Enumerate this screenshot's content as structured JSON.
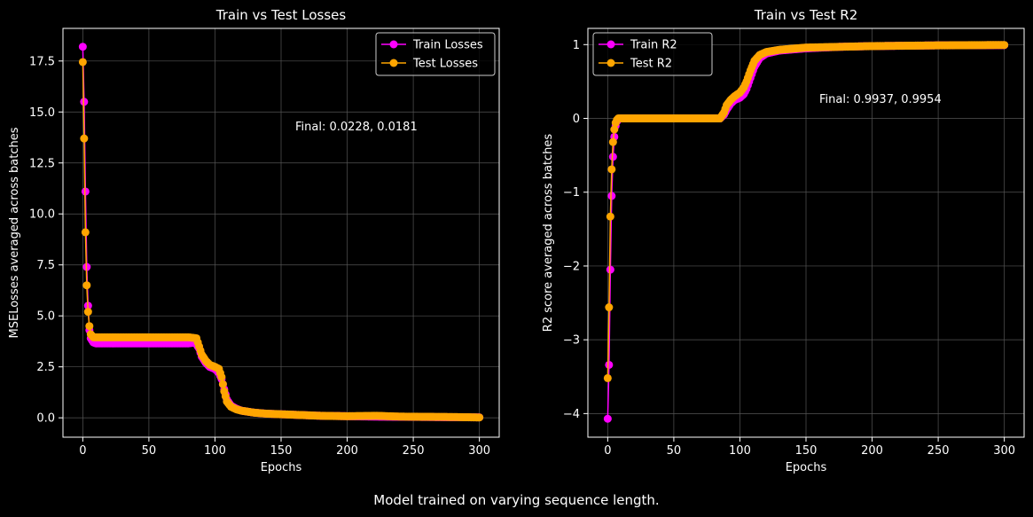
{
  "suptitle": "Model trained on varying sequence length.",
  "colors": {
    "train": "#ff00ff",
    "test": "#ffa500",
    "background": "#000000",
    "grid": "#555555",
    "text": "#ffffff"
  },
  "chart_data": [
    {
      "type": "line",
      "title": "Train vs Test Losses",
      "xlabel": "Epochs",
      "ylabel": "MSELosses averaged across batches",
      "xlim": [
        -15,
        315
      ],
      "ylim": [
        -0.95,
        19.1
      ],
      "xticks": [
        0,
        50,
        100,
        150,
        200,
        250,
        300
      ],
      "yticks": [
        0.0,
        2.5,
        5.0,
        7.5,
        10.0,
        12.5,
        15.0,
        17.5
      ],
      "ytick_labels": [
        "0.0",
        "2.5",
        "5.0",
        "7.5",
        "10.0",
        "12.5",
        "15.0",
        "17.5"
      ],
      "grid": true,
      "legend": "top-right",
      "annotation": "Final: 0.0228, 0.0181",
      "series": [
        {
          "name": "Train Losses",
          "color": "#ff00ff",
          "points": [
            [
              0,
              18.2
            ],
            [
              1,
              15.5
            ],
            [
              2,
              11.1
            ],
            [
              3,
              7.4
            ],
            [
              4,
              5.5
            ],
            [
              5,
              4.3
            ],
            [
              6,
              3.9
            ],
            [
              8,
              3.7
            ],
            [
              10,
              3.65
            ],
            [
              20,
              3.65
            ],
            [
              40,
              3.65
            ],
            [
              60,
              3.65
            ],
            [
              80,
              3.65
            ],
            [
              85,
              3.7
            ],
            [
              88,
              3.4
            ],
            [
              90,
              3.0
            ],
            [
              93,
              2.7
            ],
            [
              96,
              2.5
            ],
            [
              100,
              2.4
            ],
            [
              103,
              2.2
            ],
            [
              105,
              1.9
            ],
            [
              107,
              1.4
            ],
            [
              109,
              0.9
            ],
            [
              112,
              0.6
            ],
            [
              116,
              0.45
            ],
            [
              120,
              0.35
            ],
            [
              130,
              0.25
            ],
            [
              140,
              0.2
            ],
            [
              160,
              0.15
            ],
            [
              180,
              0.1
            ],
            [
              200,
              0.08
            ],
            [
              220,
              0.06
            ],
            [
              240,
              0.05
            ],
            [
              260,
              0.04
            ],
            [
              280,
              0.03
            ],
            [
              300,
              0.0228
            ]
          ]
        },
        {
          "name": "Test Losses",
          "color": "#ffa500",
          "points": [
            [
              0,
              17.45
            ],
            [
              1,
              13.7
            ],
            [
              2,
              9.1
            ],
            [
              3,
              6.5
            ],
            [
              4,
              5.2
            ],
            [
              5,
              4.5
            ],
            [
              6,
              4.1
            ],
            [
              8,
              3.95
            ],
            [
              10,
              3.95
            ],
            [
              20,
              3.95
            ],
            [
              40,
              3.95
            ],
            [
              60,
              3.95
            ],
            [
              80,
              3.95
            ],
            [
              86,
              3.9
            ],
            [
              88,
              3.5
            ],
            [
              90,
              3.1
            ],
            [
              93,
              2.8
            ],
            [
              96,
              2.6
            ],
            [
              100,
              2.5
            ],
            [
              103,
              2.4
            ],
            [
              105,
              2.0
            ],
            [
              107,
              1.3
            ],
            [
              109,
              0.8
            ],
            [
              112,
              0.55
            ],
            [
              116,
              0.42
            ],
            [
              120,
              0.35
            ],
            [
              125,
              0.3
            ],
            [
              130,
              0.25
            ],
            [
              140,
              0.2
            ],
            [
              160,
              0.15
            ],
            [
              180,
              0.1
            ],
            [
              200,
              0.08
            ],
            [
              222,
              0.1
            ],
            [
              240,
              0.06
            ],
            [
              260,
              0.05
            ],
            [
              280,
              0.04
            ],
            [
              300,
              0.0181
            ]
          ]
        }
      ]
    },
    {
      "type": "line",
      "title": "Train vs Test R2",
      "xlabel": "Epochs",
      "ylabel": "R2 score averaged across batches",
      "xlim": [
        -15,
        315
      ],
      "ylim": [
        -4.32,
        1.22
      ],
      "xticks": [
        0,
        50,
        100,
        150,
        200,
        250,
        300
      ],
      "yticks": [
        -4,
        -3,
        -2,
        -1,
        0,
        1
      ],
      "ytick_labels": [
        "−4",
        "−3",
        "−2",
        "−1",
        "0",
        "1"
      ],
      "grid": true,
      "legend": "top-left",
      "annotation": "Final: 0.9937, 0.9954",
      "series": [
        {
          "name": "Train R2",
          "color": "#ff00ff",
          "points": [
            [
              0,
              -4.07
            ],
            [
              1,
              -3.34
            ],
            [
              2,
              -2.05
            ],
            [
              3,
              -1.05
            ],
            [
              4,
              -0.52
            ],
            [
              5,
              -0.25
            ],
            [
              6,
              -0.1
            ],
            [
              7,
              -0.04
            ],
            [
              8,
              -0.01
            ],
            [
              10,
              0.0
            ],
            [
              30,
              0.0
            ],
            [
              50,
              0.0
            ],
            [
              70,
              0.0
            ],
            [
              85,
              0.0
            ],
            [
              88,
              0.05
            ],
            [
              90,
              0.12
            ],
            [
              93,
              0.2
            ],
            [
              96,
              0.25
            ],
            [
              100,
              0.28
            ],
            [
              103,
              0.33
            ],
            [
              105,
              0.4
            ],
            [
              108,
              0.55
            ],
            [
              111,
              0.7
            ],
            [
              115,
              0.82
            ],
            [
              120,
              0.88
            ],
            [
              130,
              0.92
            ],
            [
              150,
              0.95
            ],
            [
              175,
              0.97
            ],
            [
              200,
              0.98
            ],
            [
              250,
              0.99
            ],
            [
              300,
              0.9937
            ]
          ]
        },
        {
          "name": "Test R2",
          "color": "#ffa500",
          "points": [
            [
              0,
              -3.52
            ],
            [
              1,
              -2.56
            ],
            [
              2,
              -1.33
            ],
            [
              3,
              -0.69
            ],
            [
              4,
              -0.32
            ],
            [
              5,
              -0.15
            ],
            [
              6,
              -0.06
            ],
            [
              7,
              -0.02
            ],
            [
              8,
              0.0
            ],
            [
              10,
              0.0
            ],
            [
              30,
              0.0
            ],
            [
              50,
              0.0
            ],
            [
              70,
              0.0
            ],
            [
              85,
              0.0
            ],
            [
              88,
              0.08
            ],
            [
              90,
              0.18
            ],
            [
              93,
              0.25
            ],
            [
              96,
              0.3
            ],
            [
              100,
              0.35
            ],
            [
              103,
              0.42
            ],
            [
              105,
              0.5
            ],
            [
              108,
              0.65
            ],
            [
              111,
              0.78
            ],
            [
              115,
              0.86
            ],
            [
              120,
              0.9
            ],
            [
              130,
              0.93
            ],
            [
              150,
              0.96
            ],
            [
              175,
              0.97
            ],
            [
              200,
              0.98
            ],
            [
              250,
              0.99
            ],
            [
              300,
              0.9954
            ]
          ]
        }
      ]
    }
  ]
}
